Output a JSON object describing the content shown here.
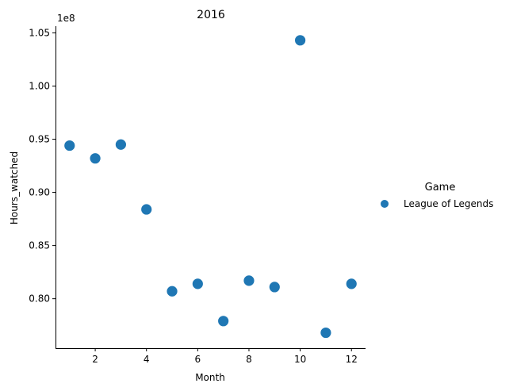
{
  "chart_data": {
    "type": "scatter",
    "title": "2016",
    "xlabel": "Month",
    "ylabel": "Hours_watched",
    "y_offset_label": "1e8",
    "xlim": [
      0.45,
      12.55
    ],
    "ylim": [
      0.7535,
      1.0563
    ],
    "xticks": [
      2,
      4,
      6,
      8,
      10,
      12
    ],
    "yticks": [
      0.8,
      0.85,
      0.9,
      0.95,
      1.0,
      1.05
    ],
    "ytick_labels": [
      "0.80",
      "0.85",
      "0.90",
      "0.95",
      "1.00",
      "1.05"
    ],
    "grid": false,
    "legend": {
      "title": "Game",
      "placement": "right"
    },
    "series": [
      {
        "name": "League of Legends",
        "color": "#1f77b4",
        "x": [
          1,
          2,
          3,
          4,
          5,
          6,
          7,
          8,
          9,
          10,
          11,
          12
        ],
        "y": [
          0.944,
          0.932,
          0.945,
          0.884,
          0.807,
          0.814,
          0.779,
          0.817,
          0.811,
          1.043,
          0.768,
          0.814
        ]
      }
    ]
  }
}
